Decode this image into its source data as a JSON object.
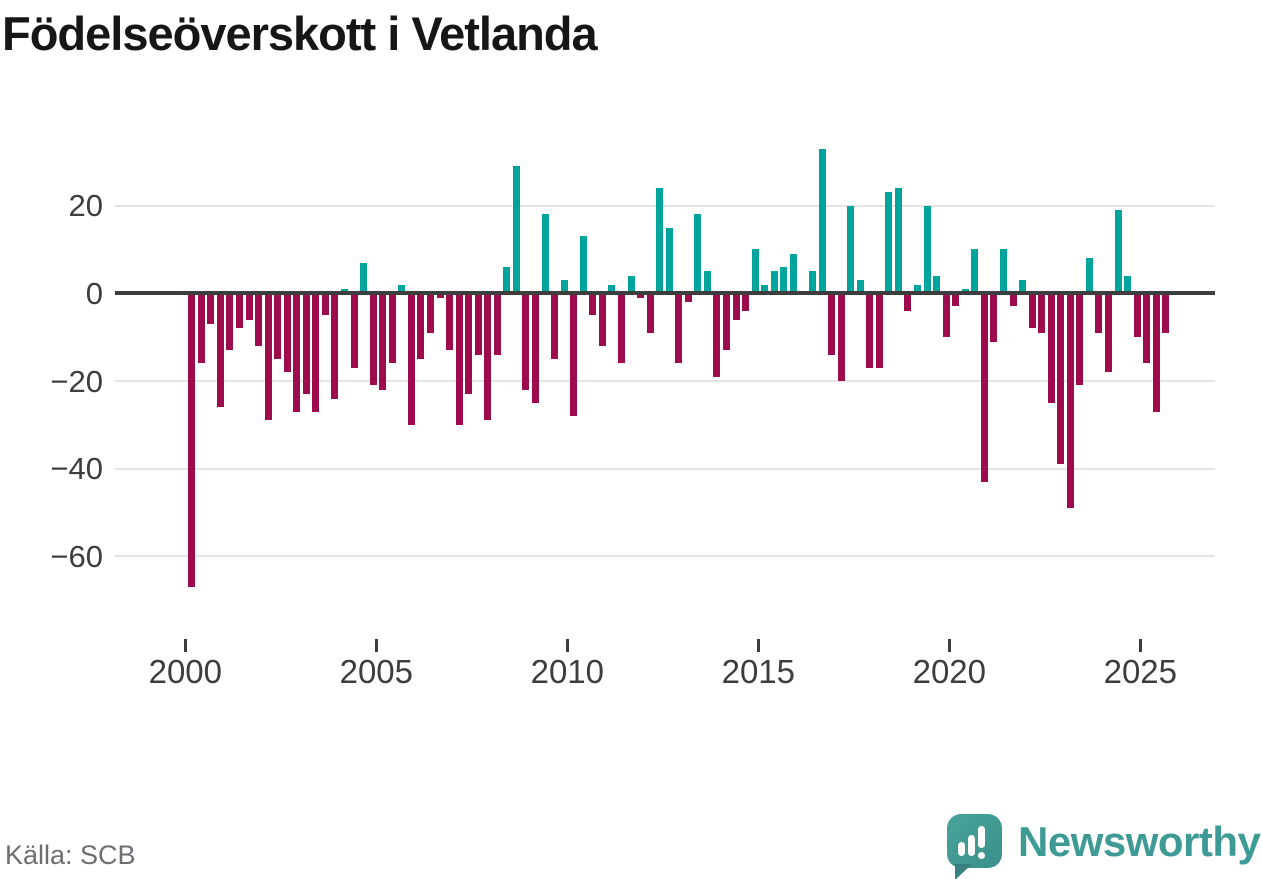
{
  "title": "Födelseöverskott i Vetlanda",
  "source": "Källa: SCB",
  "logo": {
    "brand": "Newsworthy"
  },
  "colors": {
    "positive": "#00a49d",
    "negative": "#9e0c4e",
    "axis_line": "#3d3d3d",
    "gridline": "#e4e4e4",
    "tick_label": "#3d3d3d",
    "title": "#161616",
    "source_text": "#6d6d72",
    "logo_teal": "#3e9a94",
    "background": "#ffffff"
  },
  "chart_data": {
    "type": "bar",
    "title": "Födelseöverskott i Vetlanda",
    "x_unit": "quarter",
    "start": "2000-Q1",
    "end": "2025-Q3",
    "grid": true,
    "ylim": [
      -70,
      35
    ],
    "y_ticks": [
      {
        "label": "20",
        "value": 20
      },
      {
        "label": "0",
        "value": 0
      },
      {
        "label": "−20",
        "value": -20
      },
      {
        "label": "−40",
        "value": -40
      },
      {
        "label": "−60",
        "value": -60
      }
    ],
    "x_ticks": [
      {
        "label": "2000",
        "year": 2000
      },
      {
        "label": "2005",
        "year": 2005
      },
      {
        "label": "2010",
        "year": 2010
      },
      {
        "label": "2015",
        "year": 2015
      },
      {
        "label": "2020",
        "year": 2020
      },
      {
        "label": "2025",
        "year": 2025
      }
    ],
    "series_name": "Födelseöverskott per kvartal",
    "years": [
      {
        "year": 2000,
        "values": [
          -67,
          -16,
          -7,
          -26
        ]
      },
      {
        "year": 2001,
        "values": [
          -13,
          -8,
          -6,
          -12
        ]
      },
      {
        "year": 2002,
        "values": [
          -29,
          -15,
          -18,
          -27
        ]
      },
      {
        "year": 2003,
        "values": [
          -23,
          -27,
          -5,
          -24
        ]
      },
      {
        "year": 2004,
        "values": [
          1,
          -17,
          7,
          -21
        ]
      },
      {
        "year": 2005,
        "values": [
          -22,
          -16,
          2,
          -30
        ]
      },
      {
        "year": 2006,
        "values": [
          -15,
          -9,
          -1,
          -13
        ]
      },
      {
        "year": 2007,
        "values": [
          -30,
          -23,
          -14,
          -29
        ]
      },
      {
        "year": 2008,
        "values": [
          -14,
          6,
          29,
          -22
        ]
      },
      {
        "year": 2009,
        "values": [
          -25,
          18,
          -15,
          3
        ]
      },
      {
        "year": 2010,
        "values": [
          -28,
          13,
          -5,
          -12
        ]
      },
      {
        "year": 2011,
        "values": [
          2,
          -16,
          4,
          -1
        ]
      },
      {
        "year": 2012,
        "values": [
          -9,
          24,
          15,
          -16
        ]
      },
      {
        "year": 2013,
        "values": [
          -2,
          18,
          5,
          -19
        ]
      },
      {
        "year": 2014,
        "values": [
          -13,
          -6,
          -4,
          10
        ]
      },
      {
        "year": 2015,
        "values": [
          2,
          5,
          6,
          9
        ]
      },
      {
        "year": 2016,
        "values": [
          0,
          5,
          33,
          -14
        ]
      },
      {
        "year": 2017,
        "values": [
          -20,
          20,
          3,
          -17
        ]
      },
      {
        "year": 2018,
        "values": [
          -17,
          23,
          24,
          -4
        ]
      },
      {
        "year": 2019,
        "values": [
          2,
          20,
          4,
          -10
        ]
      },
      {
        "year": 2020,
        "values": [
          -3,
          1,
          10,
          -43
        ]
      },
      {
        "year": 2021,
        "values": [
          -11,
          10,
          -3,
          3
        ]
      },
      {
        "year": 2022,
        "values": [
          -8,
          -9,
          -25,
          -39
        ]
      },
      {
        "year": 2023,
        "values": [
          -49,
          -21,
          8,
          -9
        ]
      },
      {
        "year": 2024,
        "values": [
          -18,
          19,
          4,
          -10
        ]
      },
      {
        "year": 2025,
        "values": [
          -16,
          -27,
          -9
        ]
      }
    ]
  }
}
